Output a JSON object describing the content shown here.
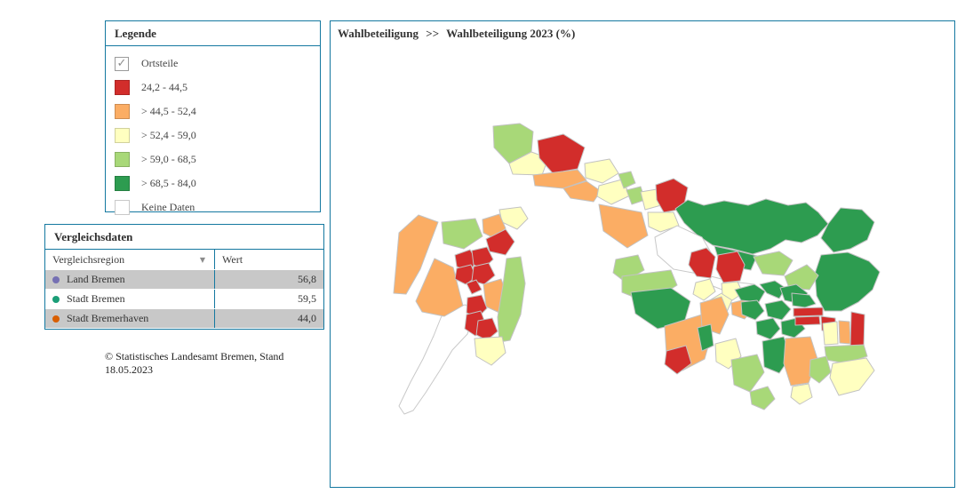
{
  "legend": {
    "title": "Legende",
    "checkbox_label": "Ortsteile",
    "checkbox_checked": true,
    "classes": [
      {
        "key": "c1",
        "label": "24,2 - 44,5",
        "color": "#d22d2b"
      },
      {
        "key": "c2",
        "label": "> 44,5 - 52,4",
        "color": "#fbad64"
      },
      {
        "key": "c3",
        "label": "> 52,4 - 59,0",
        "color": "#ffffc0"
      },
      {
        "key": "c4",
        "label": "> 59,0 - 68,5",
        "color": "#a8d878"
      },
      {
        "key": "c5",
        "label": "> 68,5 - 84,0",
        "color": "#2d9c50"
      },
      {
        "key": "nd",
        "label": "Keine Daten",
        "color": "#ffffff"
      }
    ]
  },
  "comparison": {
    "title": "Vergleichsdaten",
    "columns": [
      "Vergleichsregion",
      "Wert"
    ],
    "rows": [
      {
        "label": "Land Bremen",
        "value": "56,8",
        "dot_color": "#7570b3"
      },
      {
        "label": "Stadt Bremen",
        "value": "59,5",
        "dot_color": "#1b9e77"
      },
      {
        "label": "Stadt Bremerhaven",
        "value": "44,0",
        "dot_color": "#d95f02"
      }
    ]
  },
  "source_note": {
    "line1": "© Statistisches Landesamt Bremen, Stand",
    "line2": "18.05.2023"
  },
  "map": {
    "breadcrumb": {
      "section": "Wahlbeteiligung",
      "separator": ">>",
      "page": "Wahlbeteiligung 2023 (%)"
    },
    "stroke": "#c2c2c2",
    "regions": [
      {
        "c": "nd",
        "p": "130,298 152,294 161,304 154,327 137,345 123,368 107,393 93,413 83,417 77,408 90,381 104,355 116,329 124,309"
      },
      {
        "c": "c2",
        "p": "71,281 77,213 99,193 121,201 101,254 85,282"
      },
      {
        "c": "c2",
        "p": "96,290 117,242 138,252 149,295 128,307 103,302"
      },
      {
        "c": "c4",
        "p": "125,201 163,197 171,217 150,231 127,225"
      },
      {
        "c": "c3",
        "p": "190,187 214,184 222,197 210,209 193,201"
      },
      {
        "c": "c2",
        "p": "171,198 190,192 197,208 184,219 172,213"
      },
      {
        "c": "c1",
        "p": "175,220 197,209 207,223 197,238 179,234"
      },
      {
        "c": "c1",
        "p": "140,238 157,232 165,245 155,257 142,251"
      },
      {
        "c": "c1",
        "p": "159,233 176,229 183,243 171,254 161,249"
      },
      {
        "c": "c1",
        "p": "142,253 158,249 164,263 152,271 140,265"
      },
      {
        "c": "c1",
        "p": "161,251 178,247 185,261 173,271 159,267"
      },
      {
        "c": "c1",
        "p": "153,270 164,266 170,277 159,282"
      },
      {
        "c": "c2",
        "p": "172,271 192,265 200,287 190,303 175,296"
      },
      {
        "c": "c4",
        "p": "198,242 214,240 219,270 214,305 202,334 190,336 188,308 194,272"
      },
      {
        "c": "c1",
        "p": "154,286 170,283 176,298 165,309 153,303"
      },
      {
        "c": "c1",
        "p": "153,305 169,301 175,317 163,329 151,321"
      },
      {
        "c": "c1",
        "p": "166,312 182,309 188,324 176,334 164,328"
      },
      {
        "c": "c3",
        "p": "162,332 193,330 197,348 181,362 164,352"
      },
      {
        "c": "c4",
        "p": "183,93 213,90 228,99 226,122 201,135 184,117"
      },
      {
        "c": "c3",
        "p": "201,135 226,122 245,129 238,148 205,147"
      },
      {
        "c": "c1",
        "p": "233,109 262,102 286,117 278,141 250,146 235,129"
      },
      {
        "c": "c2",
        "p": "228,148 278,142 288,154 262,163 230,160"
      },
      {
        "c": "c2",
        "p": "262,163 288,155 304,166 296,178 270,174"
      },
      {
        "c": "c3",
        "p": "286,135 314,130 324,146 306,157 287,151"
      },
      {
        "c": "c3",
        "p": "302,160 328,153 337,171 316,181 300,172"
      },
      {
        "c": "c4",
        "p": "324,147 338,144 343,157 330,163"
      },
      {
        "c": "c4",
        "p": "333,165 349,161 354,176 339,181"
      },
      {
        "c": "c3",
        "p": "349,167 367,164 372,182 354,187"
      },
      {
        "c": "c1",
        "p": "366,159 386,152 402,162 397,186 375,190 367,176"
      },
      {
        "c": "c2",
        "p": "302,181 350,190 357,216 334,230 307,211"
      },
      {
        "c": "c3",
        "p": "357,190 386,190 392,205 371,212 358,206"
      },
      {
        "c": "c5",
        "p": "388,186 402,176 420,182 443,177 470,182 490,175 515,182 535,179 549,190 560,203 548,216 530,224 512,221 495,231 475,237 452,231 430,227 412,215 398,202"
      },
      {
        "c": "c5",
        "p": "560,203 574,185 598,187 612,201 604,221 585,231 566,235 552,219"
      },
      {
        "c": "c5",
        "p": "552,238 582,235 606,245 618,257 610,277 594,291 575,301 556,301 547,284 545,259"
      },
      {
        "c": "c5",
        "p": "432,228 460,234 480,239 473,255 450,251 436,241"
      },
      {
        "c": "c4",
        "p": "476,240 505,234 520,244 510,261 486,259"
      },
      {
        "c": "c4",
        "p": "511,262 536,249 549,261 539,277 516,275"
      },
      {
        "c": "nd",
        "p": "365,218 390,205 418,218 428,235 413,259 386,254 368,238"
      },
      {
        "c": "nd",
        "p": "428,262 452,268 477,271 475,281 446,279 425,271"
      },
      {
        "c": "c1",
        "p": "406,235 423,230 433,240 428,264 412,262 403,249"
      },
      {
        "c": "c1",
        "p": "436,238 458,234 466,249 461,267 442,269 434,254"
      },
      {
        "c": "c3",
        "p": "411,269 427,265 433,279 420,289 408,282"
      },
      {
        "c": "c3",
        "p": "425,290 440,281 452,288 446,302 430,300"
      },
      {
        "c": "c3",
        "p": "440,270 458,268 464,281 452,289 441,282"
      },
      {
        "c": "c2",
        "p": "451,292 467,288 474,300 466,310 452,305"
      },
      {
        "c": "c5",
        "p": "455,277 477,271 489,279 482,291 462,289"
      },
      {
        "c": "c5",
        "p": "483,271 500,267 512,275 505,287 491,281"
      },
      {
        "c": "c5",
        "p": "506,275 524,271 537,281 528,293 511,289"
      },
      {
        "c": "c5",
        "p": "462,291 480,289 488,301 478,311 463,305"
      },
      {
        "c": "c5",
        "p": "489,293 508,289 518,299 508,311 492,307"
      },
      {
        "c": "c5",
        "p": "519,281 539,283 546,293 534,297 520,295"
      },
      {
        "c": "c5",
        "p": "479,313 498,309 506,321 495,333 480,327"
      },
      {
        "c": "c5",
        "p": "507,313 525,309 534,321 522,331 508,327"
      },
      {
        "c": "c1",
        "p": "521,298 554,297 554,306 521,307"
      },
      {
        "c": "c1",
        "p": "523,308 550,307 551,316 523,317"
      },
      {
        "c": "c1",
        "p": "552,307 568,309 569,325 553,323"
      },
      {
        "c": "c3",
        "p": "554,315 570,313 571,338 556,339"
      },
      {
        "c": "c2",
        "p": "572,312 584,313 585,338 573,337"
      },
      {
        "c": "c1",
        "p": "586,302 601,305 600,342 585,340"
      },
      {
        "c": "c4",
        "p": "556,341 600,339 604,352 580,360 558,356"
      },
      {
        "c": "c3",
        "p": "565,360 603,354 612,368 595,390 572,396 562,376"
      },
      {
        "c": "c4",
        "p": "321,243 346,238 353,255 331,268 318,258"
      },
      {
        "c": "c4",
        "p": "328,262 383,255 390,272 358,292 328,280"
      },
      {
        "c": "c5",
        "p": "338,280 383,275 405,290 398,314 368,321 343,304"
      },
      {
        "c": "c2",
        "p": "376,318 418,305 428,330 421,355 396,368 378,350"
      },
      {
        "c": "c1",
        "p": "378,346 400,340 406,360 390,372 376,361"
      },
      {
        "c": "c2",
        "p": "416,292 440,285 448,305 438,327 418,320"
      },
      {
        "c": "c5",
        "p": "413,320 428,316 431,340 418,346"
      },
      {
        "c": "c3",
        "p": "433,338 456,332 462,352 448,366 434,358"
      },
      {
        "c": "c4",
        "p": "451,356 480,350 488,370 472,392 454,384"
      },
      {
        "c": "c5",
        "p": "486,335 510,330 518,352 505,371 488,364"
      },
      {
        "c": "c2",
        "p": "512,332 540,330 548,355 538,382 518,385 510,360"
      },
      {
        "c": "c4",
        "p": "472,392 492,386 500,400 488,412 474,406"
      },
      {
        "c": "c4",
        "p": "540,356 558,352 563,370 550,382 539,374"
      },
      {
        "c": "c3",
        "p": "520,386 538,383 542,398 528,406 518,398"
      }
    ]
  }
}
